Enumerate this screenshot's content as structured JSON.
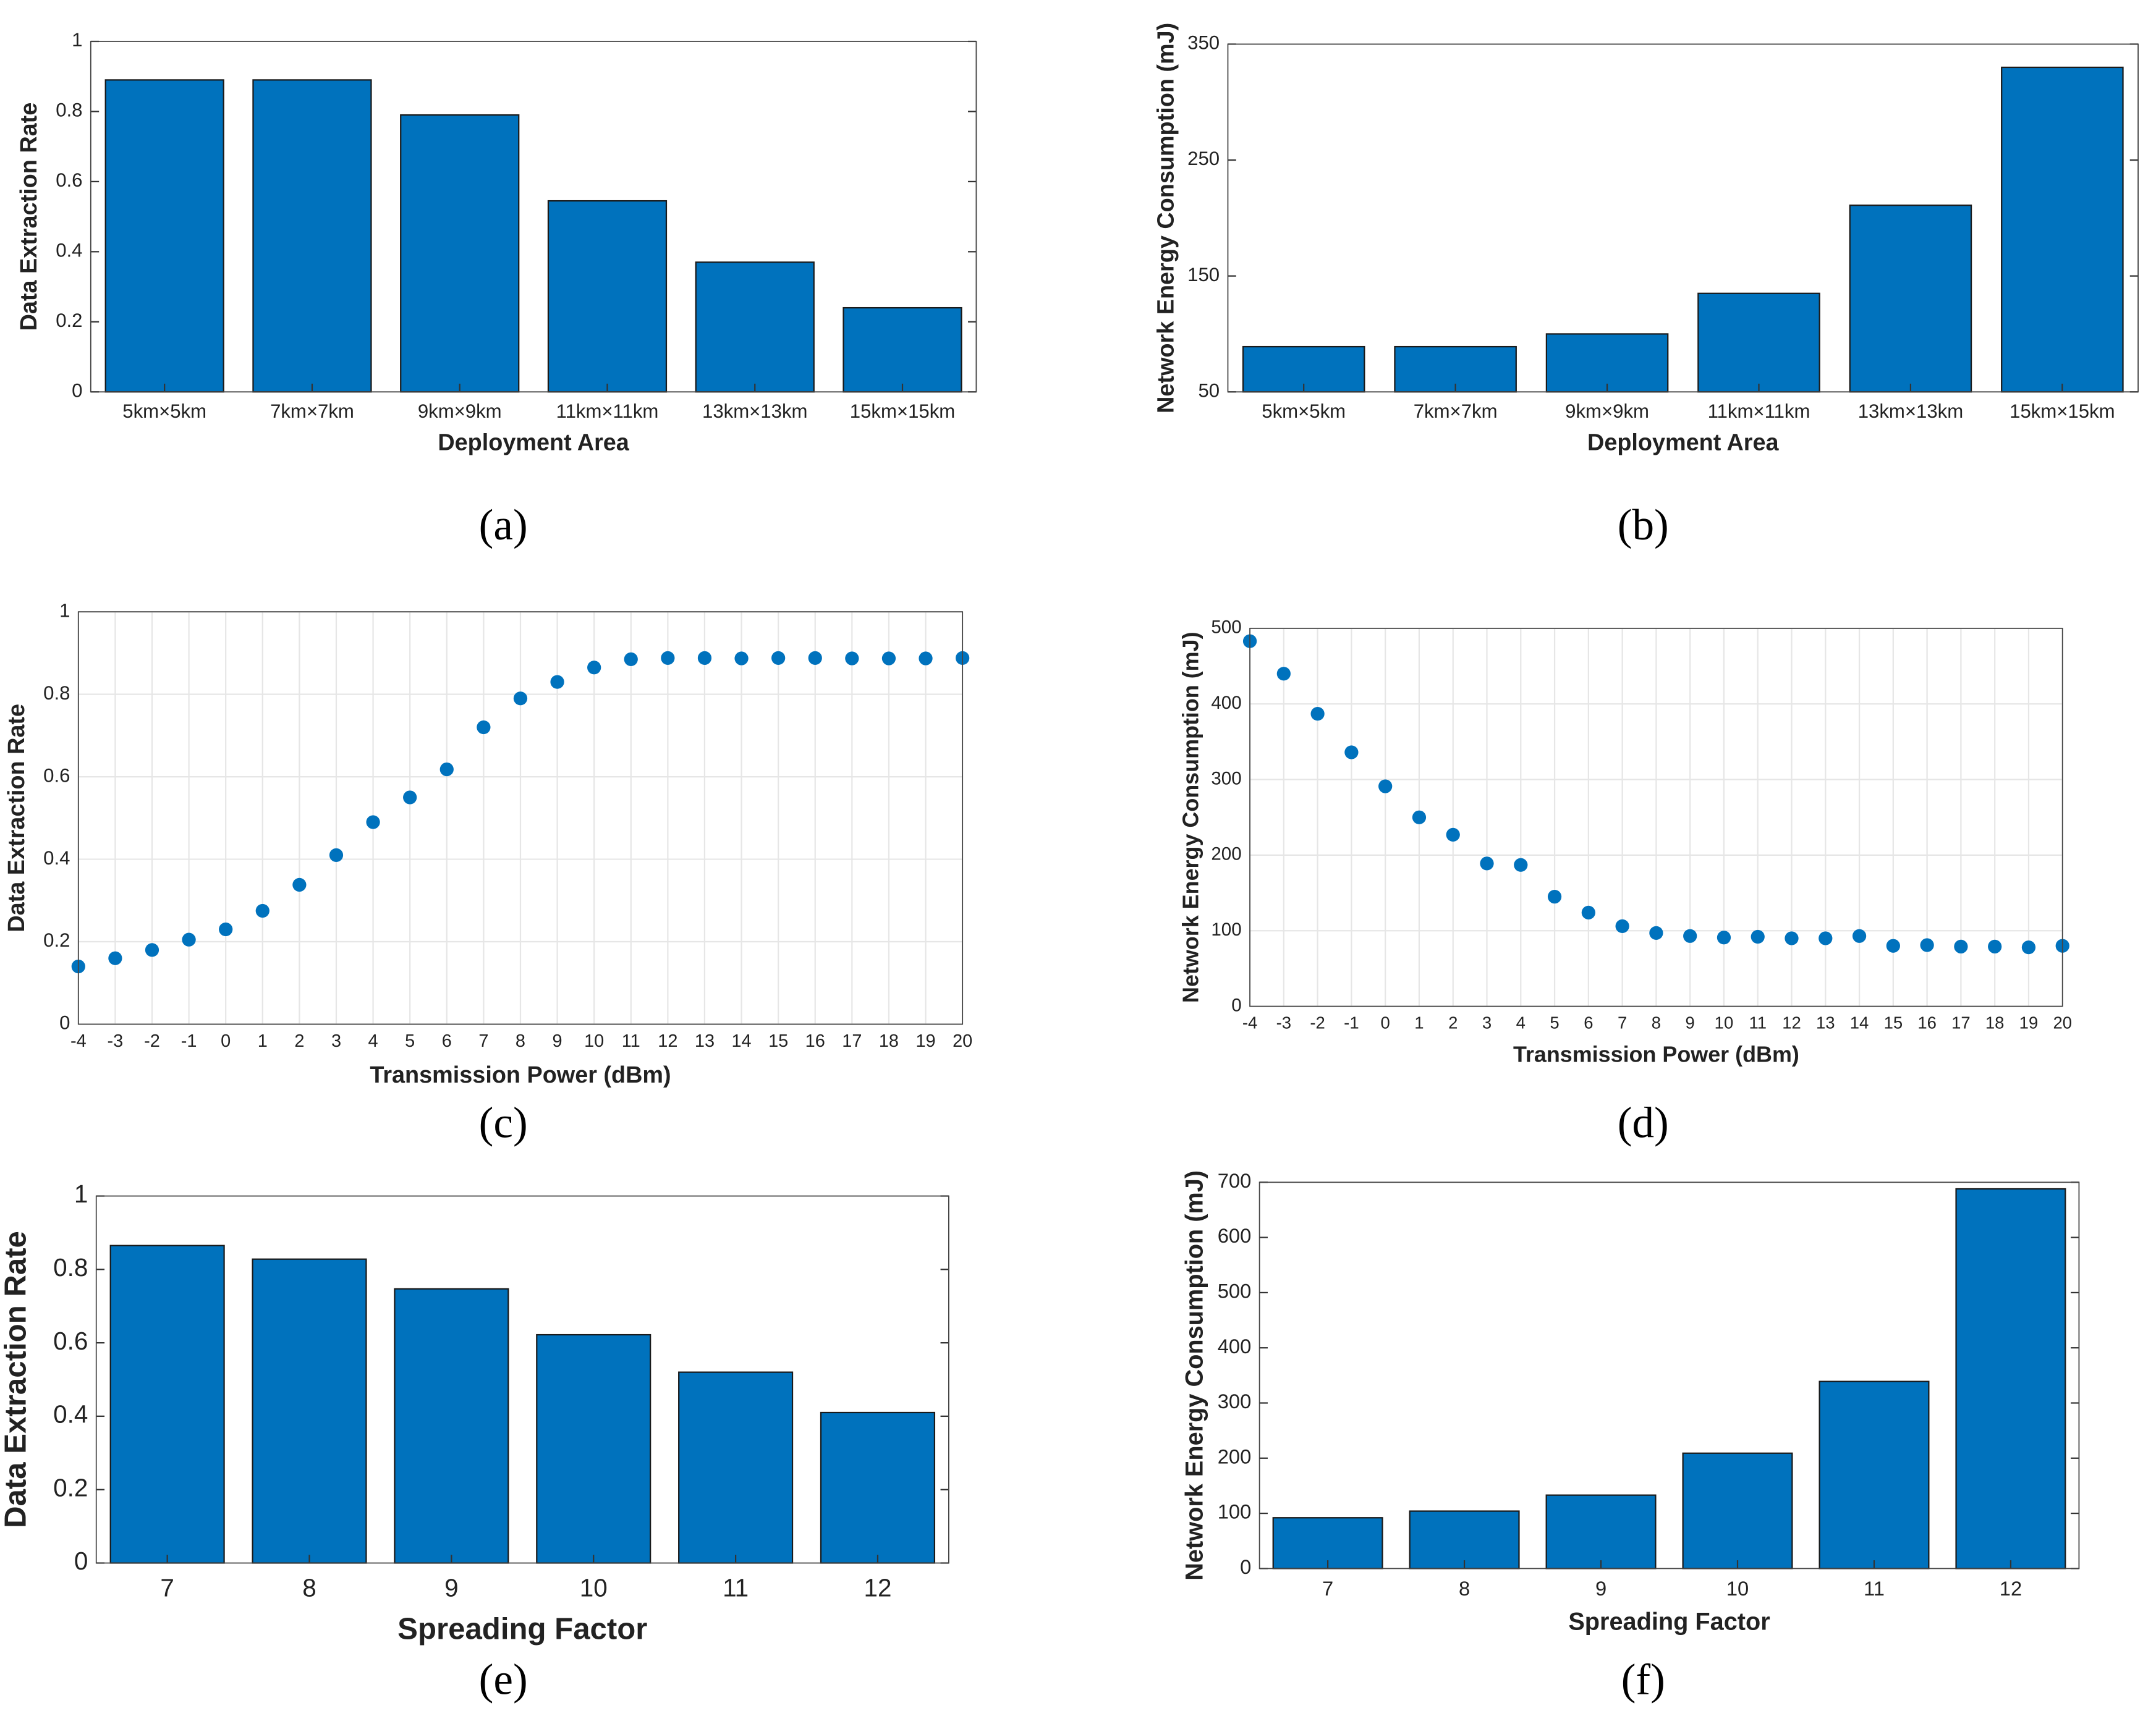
{
  "chart_data": [
    {
      "type": "bar",
      "caption": "(a)",
      "xlabel": "Deployment Area",
      "ylabel": "Data Extraction Rate",
      "categories": [
        "5km×5km",
        "7km×7km",
        "9km×9km",
        "11km×11km",
        "13km×13km",
        "15km×15km"
      ],
      "values": [
        0.89,
        0.89,
        0.79,
        0.545,
        0.37,
        0.24
      ],
      "color": "#0072bd",
      "ylim": [
        0,
        1
      ],
      "yticks": [
        0,
        0.2,
        0.4,
        0.6,
        0.8,
        1
      ],
      "grid": false
    },
    {
      "type": "bar",
      "caption": "(b)",
      "xlabel": "Deployment Area",
      "ylabel": "Network Energy Consumption (mJ)",
      "categories": [
        "5km×5km",
        "7km×7km",
        "9km×9km",
        "11km×11km",
        "13km×13km",
        "15km×15km"
      ],
      "values": [
        89,
        89,
        100,
        135,
        211,
        330
      ],
      "color": "#0072bd",
      "ylim": [
        50,
        350
      ],
      "yticks": [
        50,
        150,
        250,
        350
      ],
      "grid": false
    },
    {
      "type": "scatter",
      "caption": "(c)",
      "xlabel": "Transmission Power (dBm)",
      "ylabel": "Data Extraction Rate",
      "x": [
        -4,
        -3,
        -2,
        -1,
        0,
        1,
        2,
        3,
        4,
        5,
        6,
        7,
        8,
        9,
        10,
        11,
        12,
        13,
        14,
        15,
        16,
        17,
        18,
        19,
        20
      ],
      "values": [
        0.14,
        0.16,
        0.18,
        0.205,
        0.23,
        0.275,
        0.338,
        0.41,
        0.49,
        0.55,
        0.618,
        0.72,
        0.79,
        0.83,
        0.865,
        0.885,
        0.888,
        0.888,
        0.887,
        0.888,
        0.888,
        0.887,
        0.887,
        0.887,
        0.888
      ],
      "color": "#0072bd",
      "xlim": [
        -4,
        20
      ],
      "xticks": [
        -4,
        -3,
        -2,
        -1,
        0,
        1,
        2,
        3,
        4,
        5,
        6,
        7,
        8,
        9,
        10,
        11,
        12,
        13,
        14,
        15,
        16,
        17,
        18,
        19,
        20
      ],
      "ylim": [
        0,
        1
      ],
      "yticks": [
        0,
        0.2,
        0.4,
        0.6,
        0.8,
        1
      ],
      "grid": true
    },
    {
      "type": "scatter",
      "caption": "(d)",
      "xlabel": "Transmission Power (dBm)",
      "ylabel": "Network Energy Consumption (mJ)",
      "x": [
        -4,
        -3,
        -2,
        -1,
        0,
        1,
        2,
        3,
        4,
        5,
        6,
        7,
        8,
        9,
        10,
        11,
        12,
        13,
        14,
        15,
        16,
        17,
        18,
        19,
        20
      ],
      "values": [
        483,
        440,
        387,
        336,
        291,
        250,
        227,
        189,
        187,
        145,
        124,
        106,
        97,
        93,
        91,
        92,
        90,
        90,
        93,
        80,
        81,
        79,
        79,
        78,
        80
      ],
      "color": "#0072bd",
      "xlim": [
        -4,
        20
      ],
      "xticks": [
        -4,
        -3,
        -2,
        -1,
        0,
        1,
        2,
        3,
        4,
        5,
        6,
        7,
        8,
        9,
        10,
        11,
        12,
        13,
        14,
        15,
        16,
        17,
        18,
        19,
        20
      ],
      "ylim": [
        0,
        500
      ],
      "yticks": [
        0,
        100,
        200,
        300,
        400,
        500
      ],
      "grid": true
    },
    {
      "type": "bar",
      "caption": "(e)",
      "xlabel": "Spreading Factor",
      "ylabel": "Data Extraction Rate",
      "categories": [
        "7",
        "8",
        "9",
        "10",
        "11",
        "12"
      ],
      "values": [
        0.865,
        0.828,
        0.747,
        0.622,
        0.52,
        0.41
      ],
      "color": "#0072bd",
      "ylim": [
        0,
        1
      ],
      "yticks": [
        0,
        0.2,
        0.4,
        0.6,
        0.8,
        1
      ],
      "grid": false
    },
    {
      "type": "bar",
      "caption": "(f)",
      "xlabel": "Spreading Factor",
      "ylabel": "Network Energy Consumption (mJ)",
      "categories": [
        "7",
        "8",
        "9",
        "10",
        "11",
        "12"
      ],
      "values": [
        92,
        104,
        133,
        209,
        339,
        688
      ],
      "color": "#0072bd",
      "ylim": [
        0,
        700
      ],
      "yticks": [
        0,
        100,
        200,
        300,
        400,
        500,
        600,
        700
      ],
      "grid": false
    }
  ]
}
